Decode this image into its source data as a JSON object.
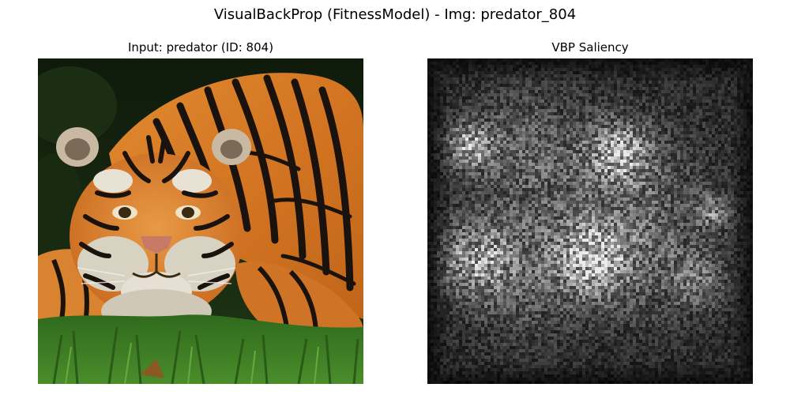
{
  "figure": {
    "suptitle": "VisualBackProp (FitnessModel) - Img: predator_804"
  },
  "panels": [
    {
      "title": "Input: predator (ID: 804)",
      "content": "tiger-photo"
    },
    {
      "title": "VBP Saliency",
      "content": "saliency-heatmap",
      "colormap": "gray"
    }
  ],
  "colors": {
    "background": "#ffffff",
    "tiger_orange": "#d9822b",
    "tiger_stripe": "#1a120c",
    "grass": "#3d7a22",
    "foliage": "#15220f",
    "saliency_base": "#202020"
  }
}
